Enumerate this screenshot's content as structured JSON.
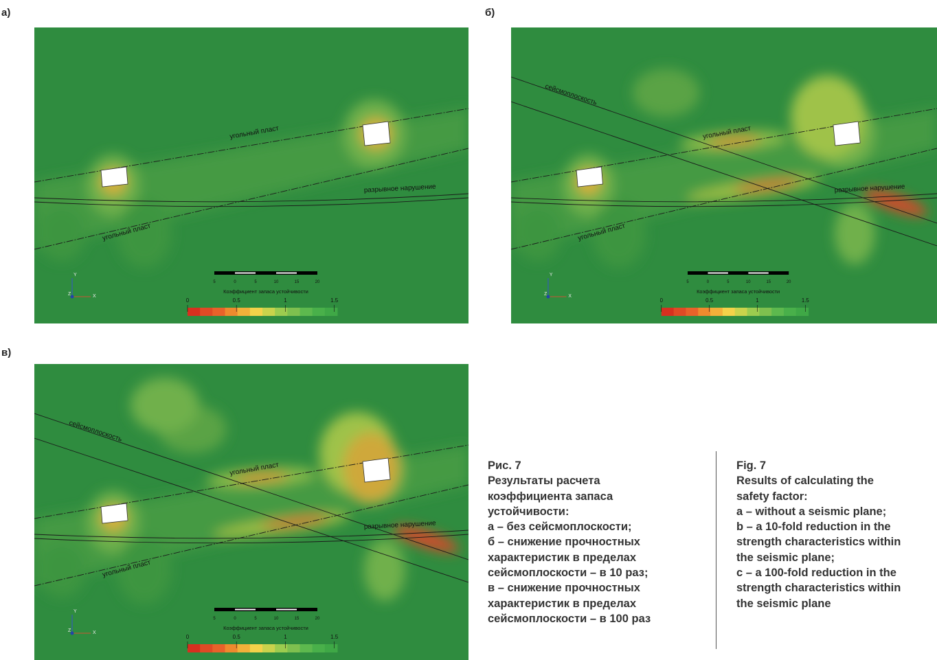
{
  "panels": [
    {
      "label": "а)",
      "annotations": [
        "угольный пласт",
        "разрывное нарушение",
        "угольный пласт"
      ],
      "scale_ticks": [
        "5",
        "0",
        "5",
        "10",
        "15",
        "20"
      ],
      "legend_title": "Коэффициент запаса устойчивости",
      "legend_ticks": [
        "0",
        "0.5",
        "1",
        "1.5"
      ],
      "axes": [
        "Y",
        "Z",
        "X"
      ]
    },
    {
      "label": "б)",
      "annotations": [
        "угольный пласт",
        "разрывное нарушение",
        "угольный пласт",
        "сейсмоплоскость"
      ],
      "scale_ticks": [
        "5",
        "0",
        "5",
        "10",
        "15",
        "20"
      ],
      "legend_title": "Коэффициент запаса устойчивости",
      "legend_ticks": [
        "0",
        "0.5",
        "1",
        "1.5"
      ],
      "axes": [
        "Y",
        "Z",
        "X"
      ]
    },
    {
      "label": "в)",
      "annotations": [
        "угольный пласт",
        "разрывное нарушение",
        "угольный пласт",
        "сейсмоплоскость"
      ],
      "scale_ticks": [
        "5",
        "0",
        "5",
        "10",
        "15",
        "20"
      ],
      "legend_title": "Коэффициент запаса устойчивости",
      "legend_ticks": [
        "0",
        "0.5",
        "1",
        "1.5"
      ],
      "axes": [
        "Y",
        "Z",
        "X"
      ]
    }
  ],
  "caption_ru": {
    "title": "Рис. 7",
    "lines": [
      "Результаты расчета",
      "коэффициента запаса",
      "устойчивости:",
      "а – без сейсмоплоскости;",
      "б – снижение прочностных",
      "характеристик в пределах",
      "сейсмоплоскости – в 10 раз;",
      "в – снижение прочностных",
      "характеристик в пределах",
      "сейсмоплоскости – в 100 раз"
    ]
  },
  "caption_en": {
    "title": "Fig. 7",
    "lines": [
      "Results of calculating the",
      "safety factor:",
      "a – without a seismic plane;",
      "b – a 10-fold reduction in the",
      "strength characteristics within",
      "the seismic plane;",
      "c – a 100-fold reduction in the",
      "strength characteristics within",
      "the seismic plane"
    ]
  }
}
